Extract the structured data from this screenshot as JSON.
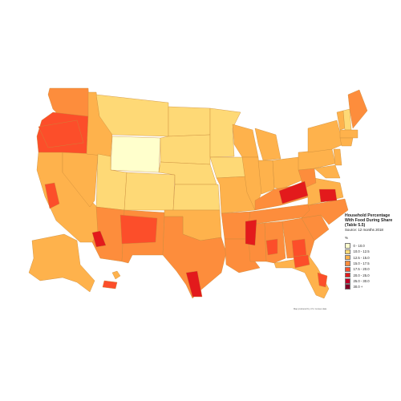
{
  "legend": {
    "title": "Household Percentage With Food During Share (Table 5.5)",
    "subtitle": "Source: 12 months 2018",
    "unit": "%",
    "bins": [
      {
        "label": "0 - 10.0",
        "color": "#ffffcc"
      },
      {
        "label": "10.0 - 12.5",
        "color": "#fed976"
      },
      {
        "label": "12.5 - 15.0",
        "color": "#feb24c"
      },
      {
        "label": "15.0 - 17.5",
        "color": "#fd8d3c"
      },
      {
        "label": "17.5 - 20.0",
        "color": "#fc4e2a"
      },
      {
        "label": "20.0 - 25.0",
        "color": "#e31a1c"
      },
      {
        "label": "25.0 - 30.0",
        "color": "#bd0026"
      },
      {
        "label": "30.0 +",
        "color": "#800026"
      }
    ]
  },
  "credit": "Map produced by U.S. Census data",
  "regions": [
    {
      "name": "Washington",
      "bin": 3
    },
    {
      "name": "Oregon",
      "bin": 4
    },
    {
      "name": "Idaho",
      "bin": 2
    },
    {
      "name": "Montana",
      "bin": 1
    },
    {
      "name": "Wyoming",
      "bin": 0
    },
    {
      "name": "North Dakota",
      "bin": 1
    },
    {
      "name": "South Dakota",
      "bin": 1
    },
    {
      "name": "Nebraska",
      "bin": 1
    },
    {
      "name": "Kansas",
      "bin": 1
    },
    {
      "name": "Oklahoma",
      "bin": 2
    },
    {
      "name": "Texas",
      "bin": 3
    },
    {
      "name": "New Mexico",
      "bin": 3
    },
    {
      "name": "Arizona",
      "bin": 3
    },
    {
      "name": "Colorado",
      "bin": 1
    },
    {
      "name": "Utah",
      "bin": 1
    },
    {
      "name": "Nevada",
      "bin": 2
    },
    {
      "name": "California",
      "bin": 2
    },
    {
      "name": "Minnesota",
      "bin": 1
    },
    {
      "name": "Iowa",
      "bin": 1
    },
    {
      "name": "Missouri",
      "bin": 2
    },
    {
      "name": "Arkansas",
      "bin": 3
    },
    {
      "name": "Louisiana",
      "bin": 3
    },
    {
      "name": "Wisconsin",
      "bin": 2
    },
    {
      "name": "Illinois",
      "bin": 2
    },
    {
      "name": "Mississippi",
      "bin": 3
    },
    {
      "name": "Alabama",
      "bin": 3
    },
    {
      "name": "Tennessee",
      "bin": 3
    },
    {
      "name": "Kentucky",
      "bin": 3
    },
    {
      "name": "Indiana",
      "bin": 2
    },
    {
      "name": "Michigan",
      "bin": 2
    },
    {
      "name": "Ohio",
      "bin": 2
    },
    {
      "name": "Georgia",
      "bin": 3
    },
    {
      "name": "Florida",
      "bin": 2
    },
    {
      "name": "South Carolina",
      "bin": 3
    },
    {
      "name": "North Carolina",
      "bin": 3
    },
    {
      "name": "Virginia",
      "bin": 2
    },
    {
      "name": "West Virginia",
      "bin": 3
    },
    {
      "name": "Pennsylvania",
      "bin": 2
    },
    {
      "name": "New York",
      "bin": 2
    },
    {
      "name": "Vermont",
      "bin": 2
    },
    {
      "name": "New Hampshire",
      "bin": 1
    },
    {
      "name": "Maine",
      "bin": 3
    },
    {
      "name": "Massachusetts",
      "bin": 2
    },
    {
      "name": "Connecticut",
      "bin": 2
    },
    {
      "name": "New Jersey",
      "bin": 2
    },
    {
      "name": "Maryland",
      "bin": 2
    },
    {
      "name": "Alaska",
      "bin": 2
    },
    {
      "name": "Hawaii",
      "bin": 2
    },
    {
      "name": "Southern Oregon hotspot",
      "bin": 4
    },
    {
      "name": "Eastern Kentucky hotspot",
      "bin": 5
    },
    {
      "name": "Mississippi Delta hotspot",
      "bin": 5
    },
    {
      "name": "Rio Grande Valley hotspot",
      "bin": 5
    },
    {
      "name": "Navajo Nation hotspot",
      "bin": 4
    },
    {
      "name": "Central Valley hotspot",
      "bin": 4
    },
    {
      "name": "Arizona border hotspot",
      "bin": 5
    },
    {
      "name": "North Carolina hotspot",
      "bin": 5
    },
    {
      "name": "South Georgia hotspot",
      "bin": 4
    },
    {
      "name": "Florida Panhandle hotspot",
      "bin": 4
    },
    {
      "name": "South Florida hotspot",
      "bin": 4
    },
    {
      "name": "Alabama Black Belt hotspot",
      "bin": 4
    },
    {
      "name": "Puerto Rico",
      "bin": 4
    }
  ]
}
